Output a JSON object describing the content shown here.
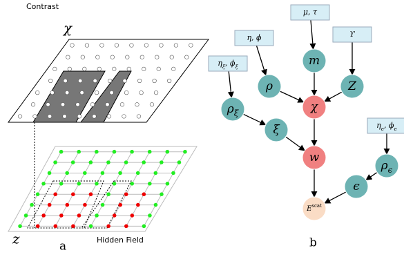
{
  "panel_a": {
    "top_label": "Contrast",
    "top_symbol": "χ",
    "bottom_symbol": "z",
    "bottom_label": "Hidden Field",
    "letter": "a"
  },
  "panel_b": {
    "letter": "b",
    "nodes": [
      {
        "runs": [
          {
            "text": "μ, τ"
          }
        ]
      },
      {
        "runs": [
          {
            "text": "η, ϕ"
          }
        ]
      },
      {
        "runs": [
          {
            "text": "ϒ"
          }
        ]
      },
      {
        "runs": [
          {
            "text": "η"
          },
          {
            "sub": "ξ"
          },
          {
            "text": ", ϕ"
          },
          {
            "sub": "ξ"
          }
        ]
      },
      {
        "runs": [
          {
            "text": "m"
          }
        ]
      },
      {
        "runs": [
          {
            "text": "ρ"
          }
        ]
      },
      {
        "runs": [
          {
            "text": "Z"
          }
        ]
      },
      {
        "runs": [
          {
            "text": "ρ"
          },
          {
            "sub": "ξ"
          }
        ]
      },
      {
        "runs": [
          {
            "text": "χ"
          }
        ]
      },
      {
        "runs": [
          {
            "text": "ξ"
          }
        ]
      },
      {
        "runs": [
          {
            "text": "w"
          }
        ]
      },
      {
        "runs": [
          {
            "text": "η"
          },
          {
            "sub": "ϵ"
          },
          {
            "text": ", ϕ"
          },
          {
            "sub": "ϵ"
          }
        ]
      },
      {
        "runs": [
          {
            "text": "ρ"
          },
          {
            "sub": "ϵ"
          }
        ]
      },
      {
        "runs": [
          {
            "text": "ϵ"
          }
        ]
      },
      {
        "runs": [
          {
            "text": "E"
          },
          {
            "sup": "scat"
          }
        ]
      }
    ]
  }
}
